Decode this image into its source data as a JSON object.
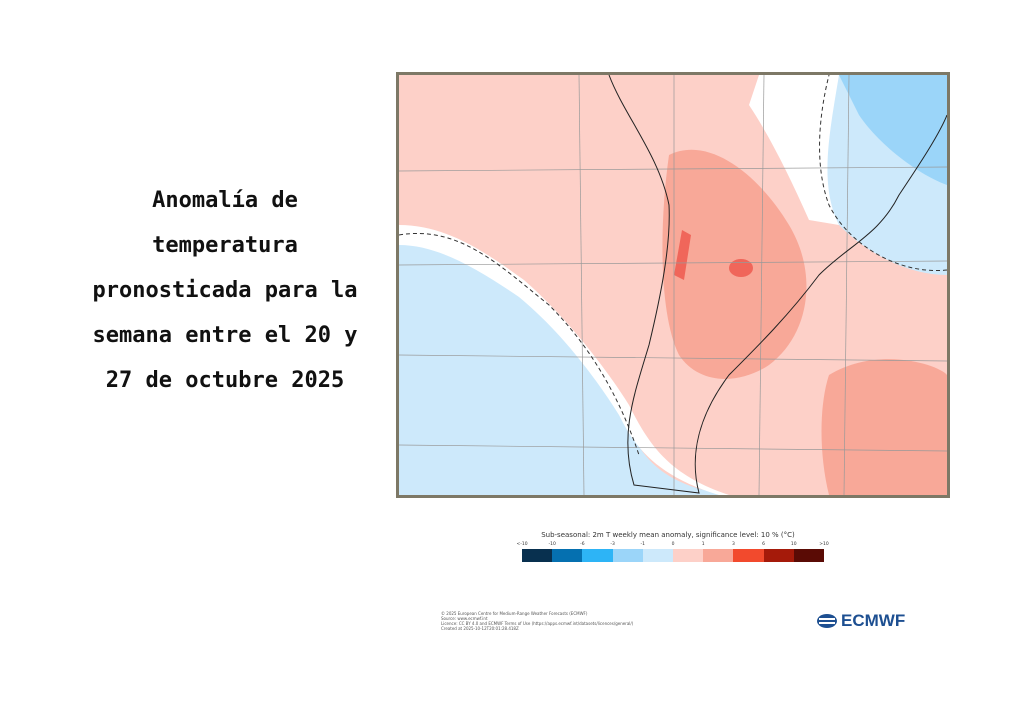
{
  "title": "Anomalía de temperatura pronosticada para la semana entre el 20 y 27 de octubre 2025",
  "map": {
    "type": "weekly 2m temperature anomaly map",
    "region": "Southern South America",
    "colors": {
      "strong_warm": "#f0665a",
      "warm": "#f8a898",
      "slight_warm": "#fdd0c8",
      "neutral": "#ffffff",
      "slight_cool": "#cde9fb",
      "cool": "#9bd5f9",
      "frame": "#7d7866"
    }
  },
  "legend": {
    "title": "Sub-seasonal: 2m T weekly mean anomaly, significance level: 10 % (°C)",
    "ticks": [
      "<-10",
      "-10",
      "-6",
      "-3",
      "-1",
      "0",
      "1",
      "3",
      "6",
      "10",
      ">10"
    ],
    "colors": [
      "#08304f",
      "#0570b0",
      "#2db4f6",
      "#9bd5f9",
      "#cde9fb",
      "#fdd0c8",
      "#f8a898",
      "#f24a2d",
      "#a51a0a",
      "#5a0b05"
    ]
  },
  "footer": {
    "lines": [
      "© 2025 European Centre for Medium-Range Weather Forecasts (ECMWF)",
      "Source: www.ecmwf.int",
      "Licence: CC BY 4.0 and ECMWF Terms of Use (https://apps.ecmwf.int/datasets/licences/general/)",
      "Created at 2025-10-12T20:01:28.418Z"
    ]
  },
  "logo": {
    "text": "ECMWF"
  }
}
